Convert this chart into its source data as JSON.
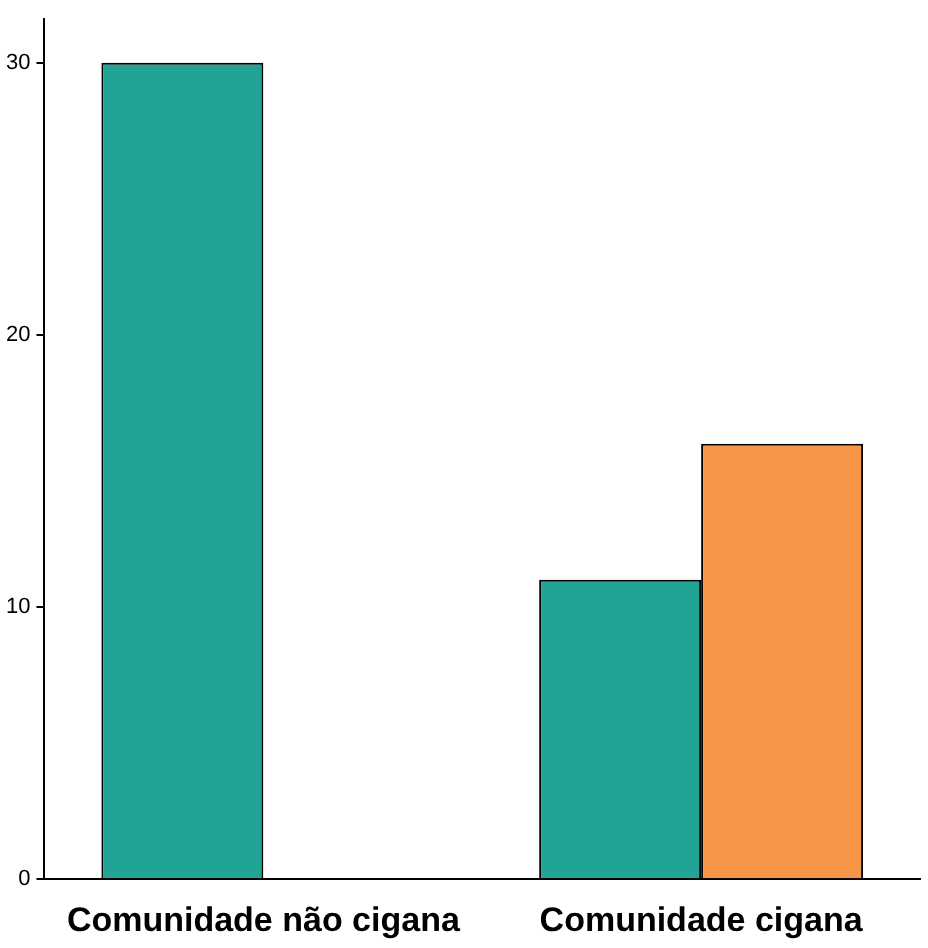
{
  "chart_data": {
    "type": "bar",
    "categories": [
      "Comunidade não cigana",
      "Comunidade cigana"
    ],
    "series": [
      {
        "color": "#21a396",
        "values": [
          30,
          11
        ]
      },
      {
        "color": "#f79646",
        "values": [
          null,
          16
        ]
      }
    ],
    "ylim": [
      0,
      31.6
    ],
    "yticks": [
      0,
      10,
      20,
      30
    ],
    "grid": false,
    "legend": false
  }
}
